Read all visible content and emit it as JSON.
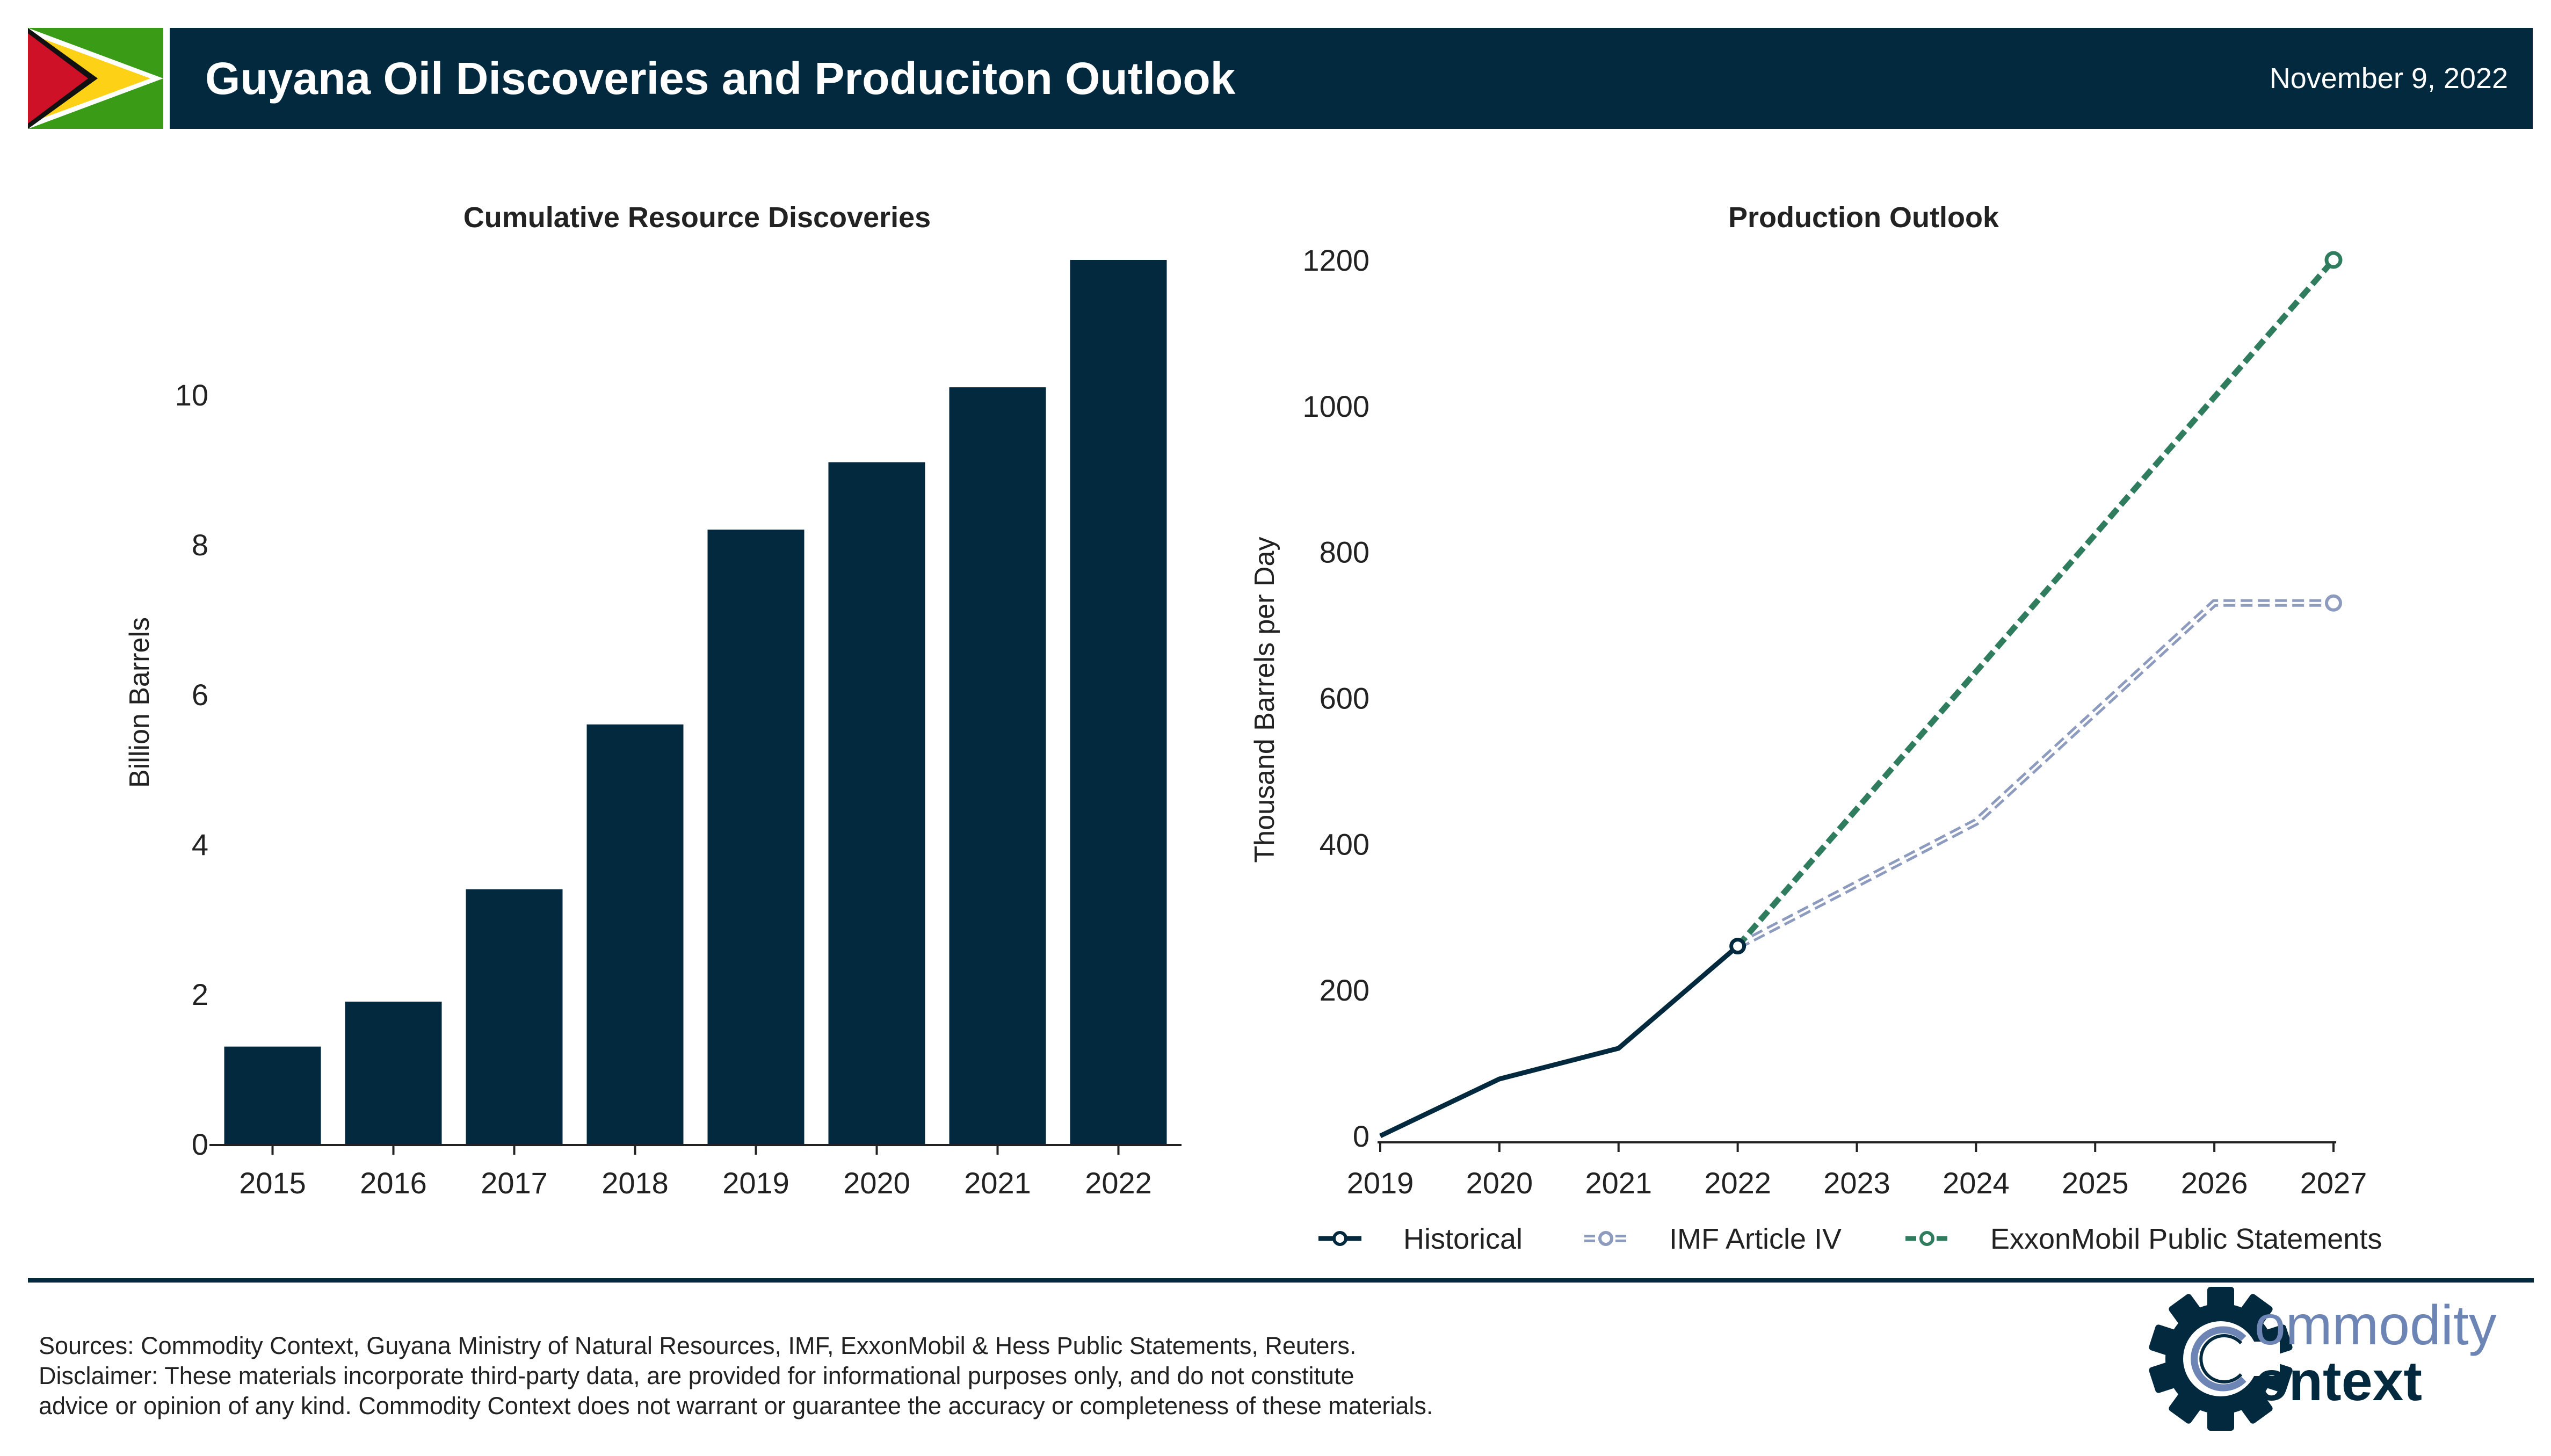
{
  "header": {
    "title": "Guyana Oil Discoveries and Produciton Outlook",
    "date": "November 9, 2022",
    "flag_colors": {
      "green": "#3a9b16",
      "white": "#ffffff",
      "gold": "#fcd116",
      "black": "#111111",
      "red": "#ce1126"
    }
  },
  "colors": {
    "navy": "#03293f",
    "imf": "#8d9bbf",
    "exxon": "#2f7d5e",
    "logo_light": "#6d85b5"
  },
  "chart_data": [
    {
      "type": "bar",
      "title": "Cumulative Resource Discoveries",
      "xlabel": "",
      "ylabel": "Billion Barrels",
      "categories": [
        "2015",
        "2016",
        "2017",
        "2018",
        "2019",
        "2020",
        "2021",
        "2022"
      ],
      "values": [
        1.3,
        1.9,
        3.4,
        5.6,
        8.2,
        9.1,
        10.1,
        11.8
      ],
      "ylim": [
        0,
        11.8
      ],
      "yticks": [
        0,
        2,
        4,
        6,
        8,
        10
      ],
      "grid": false
    },
    {
      "type": "line",
      "title": "Production Outlook",
      "xlabel": "",
      "ylabel": "Thousand Barrels per Day",
      "xlim": [
        2019,
        2027
      ],
      "ylim": [
        0,
        1200
      ],
      "xticks": [
        2019,
        2020,
        2021,
        2022,
        2023,
        2024,
        2025,
        2026,
        2027
      ],
      "yticks": [
        0,
        200,
        400,
        600,
        800,
        1000,
        1200
      ],
      "grid": false,
      "legend_position": "bottom",
      "series": [
        {
          "name": "Historical",
          "x": [
            2019,
            2020,
            2021,
            2022
          ],
          "values": [
            0,
            78,
            120,
            260
          ],
          "style": "solid"
        },
        {
          "name": "IMF Article IV",
          "x": [
            2022,
            2024,
            2026,
            2027
          ],
          "values": [
            260,
            430,
            730,
            730
          ],
          "style": "double-dashed"
        },
        {
          "name": "ExxonMobil Public Statements",
          "x": [
            2022,
            2027
          ],
          "values": [
            260,
            1200
          ],
          "style": "dashed"
        }
      ]
    }
  ],
  "footer": {
    "sources": "Sources: Commodity Context, Guyana Ministry of Natural Resources, IMF, ExxonMobil & Hess Public Statements, Reuters.",
    "disclaimer_line1": "Disclaimer: These materials incorporate third-party data, are provided for informational purposes only, and do not constitute",
    "disclaimer_line2": "advice or opinion of any kind. Commodity Context does not warrant or guarantee the accuracy or completeness of these materials."
  },
  "logo": {
    "top_word": "ommodity",
    "bottom_word": "ontext"
  }
}
